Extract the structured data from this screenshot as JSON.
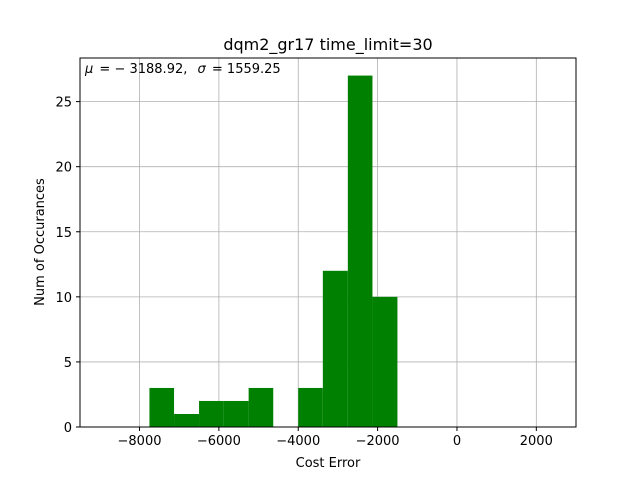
{
  "chart_data": {
    "type": "bar",
    "title": "dqm2_gr17 time_limit=30",
    "annotation": "μ = − 3188.92,  σ = 1559.25",
    "annotation_mu_label": "μ",
    "annotation_mu_value": "= − 3188.92,",
    "annotation_sigma_label": "σ",
    "annotation_sigma_value": "= 1559.25",
    "xlabel": "Cost Error",
    "ylabel": "Num of Occurances",
    "xlim": [
      -9500,
      3000
    ],
    "ylim": [
      0,
      28.35
    ],
    "grid": true,
    "bar_color": "#008000",
    "xticks": [
      -8000,
      -6000,
      -4000,
      -2000,
      0,
      2000
    ],
    "xtick_labels": [
      "−8000",
      "−6000",
      "−4000",
      "−2000",
      "0",
      "2000"
    ],
    "yticks": [
      0,
      5,
      10,
      15,
      20,
      25
    ],
    "ytick_labels": [
      "0",
      "5",
      "10",
      "15",
      "20",
      "25"
    ],
    "bins": [
      {
        "x0": -7750,
        "x1": -7130,
        "count": 3
      },
      {
        "x0": -7130,
        "x1": -6500,
        "count": 1
      },
      {
        "x0": -6500,
        "x1": -5880,
        "count": 2
      },
      {
        "x0": -5880,
        "x1": -5250,
        "count": 2
      },
      {
        "x0": -5250,
        "x1": -4630,
        "count": 3
      },
      {
        "x0": -4630,
        "x1": -4000,
        "count": 0
      },
      {
        "x0": -4000,
        "x1": -3380,
        "count": 3
      },
      {
        "x0": -3380,
        "x1": -2750,
        "count": 12
      },
      {
        "x0": -2750,
        "x1": -2130,
        "count": 27
      },
      {
        "x0": -2130,
        "x1": -1500,
        "count": 10
      }
    ]
  }
}
